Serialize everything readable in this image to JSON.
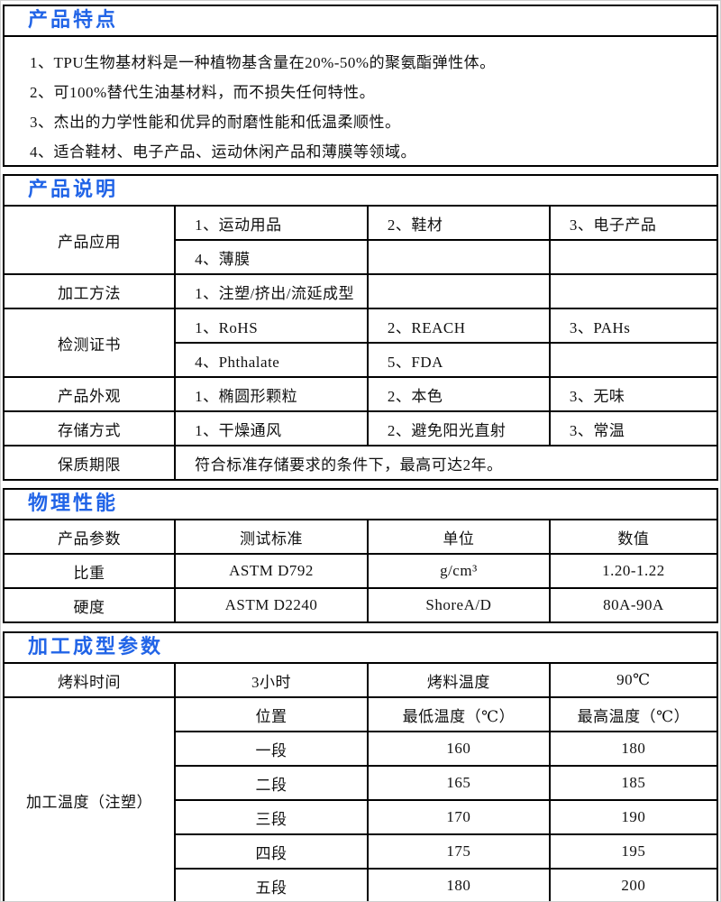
{
  "colors": {
    "accent": "#2164e7",
    "border": "#000000",
    "background": "#ffffff"
  },
  "sections": {
    "features": {
      "title": "产品特点",
      "items": [
        "1、TPU生物基材料是一种植物基含量在20%-50%的聚氨酯弹性体。",
        "2、可100%替代生油基材料，而不损失任何特性。",
        "3、杰出的力学性能和优异的耐磨性能和低温柔顺性。",
        "4、适合鞋材、电子产品、运动休闲产品和薄膜等领域。"
      ]
    },
    "description": {
      "title": "产品说明",
      "app_label": "产品应用",
      "app_r1": [
        "1、运动用品",
        "2、鞋材",
        "3、电子产品"
      ],
      "app_r2": "4、薄膜",
      "method_label": "加工方法",
      "method_value": "1、注塑/挤出/流延成型",
      "cert_label": "检测证书",
      "cert_r1": [
        "1、RoHS",
        "2、REACH",
        "3、PAHs"
      ],
      "cert_r2": [
        "4、Phthalate",
        "5、FDA"
      ],
      "appearance_label": "产品外观",
      "appearance": [
        "1、椭圆形颗粒",
        "2、本色",
        "3、无味"
      ],
      "storage_label": "存储方式",
      "storage": [
        "1、干燥通风",
        "2、避免阳光直射",
        "3、常温"
      ],
      "shelf_label": "保质期限",
      "shelf_value": "符合标准存储要求的条件下，最高可达2年。"
    },
    "physical": {
      "title": "物理性能",
      "headers": [
        "产品参数",
        "测试标准",
        "单位",
        "数值"
      ],
      "rows": [
        [
          "比重",
          "ASTM D792",
          "g/cm³",
          "1.20-1.22"
        ],
        [
          "硬度",
          "ASTM D2240",
          "ShoreA/D",
          "80A-90A"
        ]
      ]
    },
    "molding": {
      "title": "加工成型参数",
      "bake_time_label": "烤料时间",
      "bake_time_value": "3小时",
      "bake_temp_label": "烤料温度",
      "bake_temp_value": "90℃",
      "inject_label": "加工温度（注塑）",
      "temp_headers": [
        "位置",
        "最低温度（℃）",
        "最高温度（℃）"
      ],
      "temp_rows": [
        [
          "一段",
          "160",
          "180"
        ],
        [
          "二段",
          "165",
          "185"
        ],
        [
          "三段",
          "170",
          "190"
        ],
        [
          "四段",
          "175",
          "195"
        ],
        [
          "五段",
          "180",
          "200"
        ]
      ]
    }
  }
}
